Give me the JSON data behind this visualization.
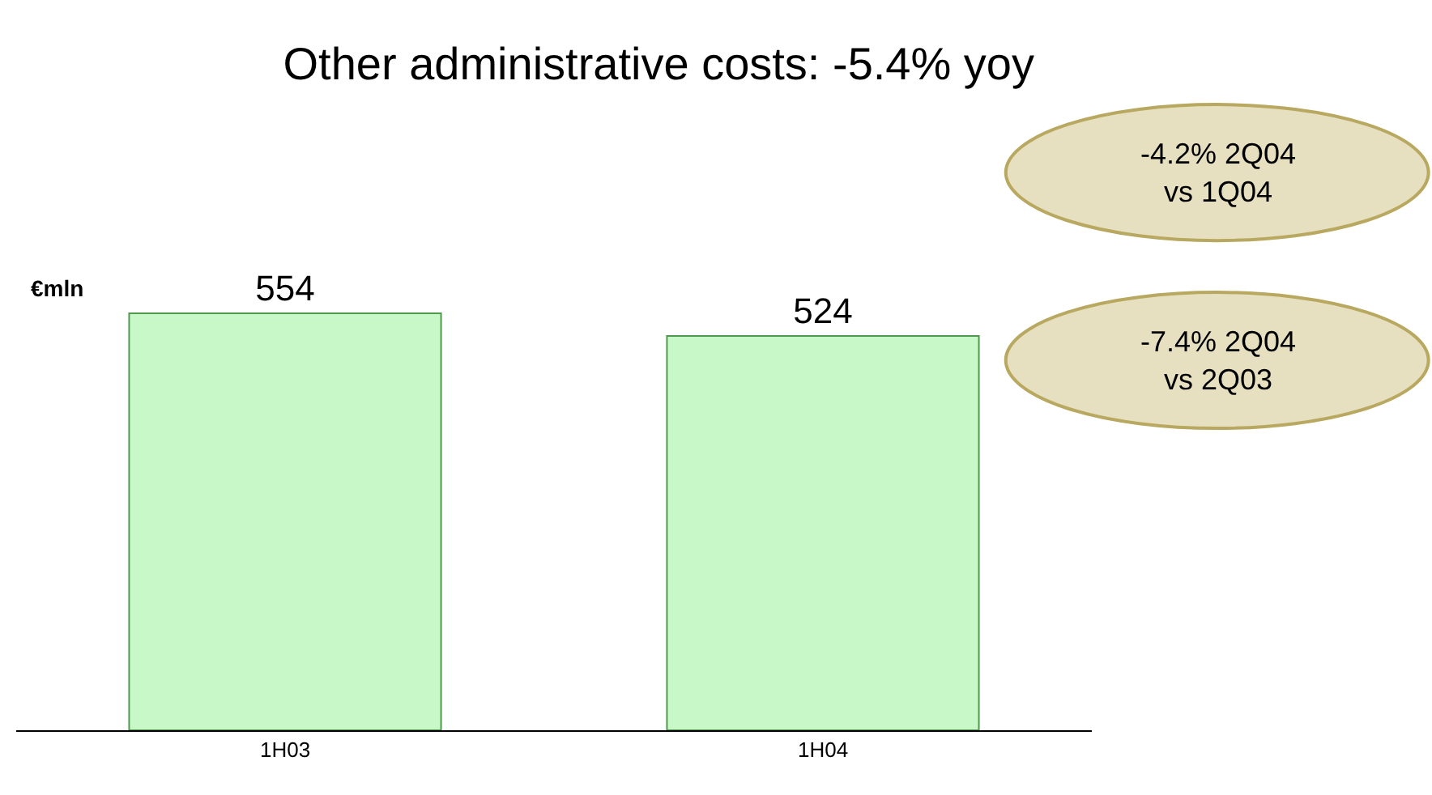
{
  "chart_data": {
    "type": "bar",
    "title": "Other administrative costs: -5.4% yoy",
    "ylabel": "€mln",
    "categories": [
      "1H03",
      "1H04"
    ],
    "values": [
      554,
      524
    ],
    "color": "#c8f8c8",
    "data_labels": true,
    "legend": false,
    "annotations": [
      "-4.2% 2Q04\nvs 1Q04",
      "-7.4% 2Q04\nvs 2Q03"
    ]
  }
}
